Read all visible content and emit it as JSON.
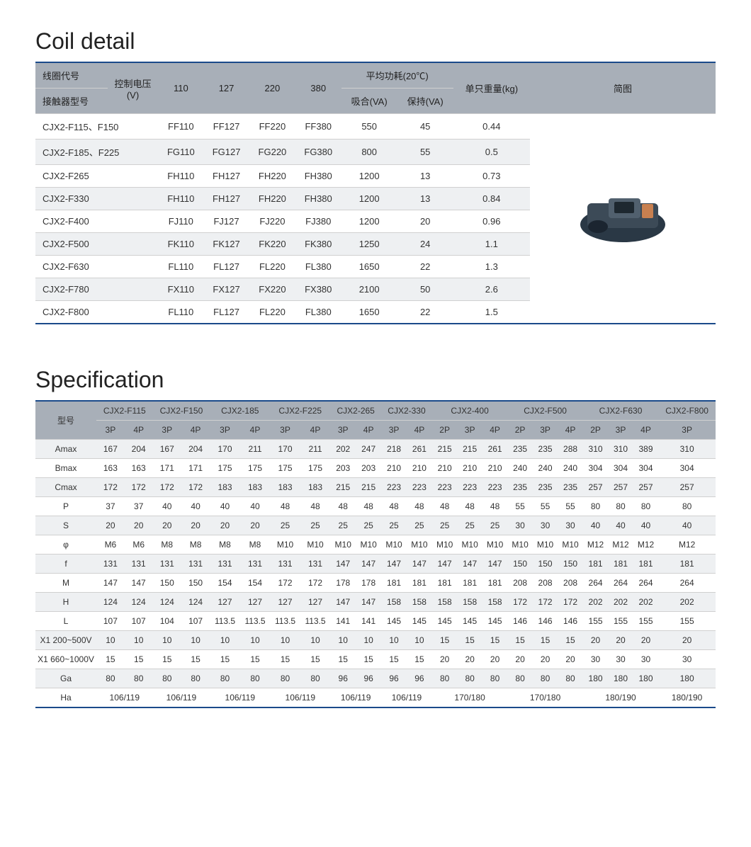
{
  "coil": {
    "title": "Coil detail",
    "header": {
      "coil_code": "线圈代号",
      "contactor_model": "接触器型号",
      "control_voltage": "控制电压 (V)",
      "v110": "110",
      "v127": "127",
      "v220": "220",
      "v380": "380",
      "avg_power": "平均功耗(20℃)",
      "pull_in": "吸合(VA)",
      "hold": "保持(VA)",
      "weight": "单只重量(kg)",
      "diagram": "简图"
    },
    "rows": [
      {
        "model": "CJX2-F115、F150",
        "v110": "FF110",
        "v127": "FF127",
        "v220": "FF220",
        "v380": "FF380",
        "pull": "550",
        "hold": "45",
        "wt": "0.44"
      },
      {
        "model": "CJX2-F185、F225",
        "v110": "FG110",
        "v127": "FG127",
        "v220": "FG220",
        "v380": "FG380",
        "pull": "800",
        "hold": "55",
        "wt": "0.5"
      },
      {
        "model": "CJX2-F265",
        "v110": "FH110",
        "v127": "FH127",
        "v220": "FH220",
        "v380": "FH380",
        "pull": "1200",
        "hold": "13",
        "wt": "0.73"
      },
      {
        "model": "CJX2-F330",
        "v110": "FH110",
        "v127": "FH127",
        "v220": "FH220",
        "v380": "FH380",
        "pull": "1200",
        "hold": "13",
        "wt": "0.84"
      },
      {
        "model": "CJX2-F400",
        "v110": "FJ110",
        "v127": "FJ127",
        "v220": "FJ220",
        "v380": "FJ380",
        "pull": "1200",
        "hold": "20",
        "wt": "0.96"
      },
      {
        "model": "CJX2-F500",
        "v110": "FK110",
        "v127": "FK127",
        "v220": "FK220",
        "v380": "FK380",
        "pull": "1250",
        "hold": "24",
        "wt": "1.1"
      },
      {
        "model": "CJX2-F630",
        "v110": "FL110",
        "v127": "FL127",
        "v220": "FL220",
        "v380": "FL380",
        "pull": "1650",
        "hold": "22",
        "wt": "1.3"
      },
      {
        "model": "CJX2-F780",
        "v110": "FX110",
        "v127": "FX127",
        "v220": "FX220",
        "v380": "FX380",
        "pull": "2100",
        "hold": "50",
        "wt": "2.6"
      },
      {
        "model": "CJX2-F800",
        "v110": "FL110",
        "v127": "FL127",
        "v220": "FL220",
        "v380": "FL380",
        "pull": "1650",
        "hold": "22",
        "wt": "1.5"
      }
    ],
    "colors": {
      "header_bg": "#a8afb8",
      "border": "#1a4a8a",
      "row_alt": "#eef0f2"
    }
  },
  "spec": {
    "title": "Specification",
    "model_label": "型号",
    "models": [
      {
        "name": "CJX2-F115",
        "poles": [
          "3P",
          "4P"
        ]
      },
      {
        "name": "CJX2-F150",
        "poles": [
          "3P",
          "4P"
        ]
      },
      {
        "name": "CJX2-185",
        "poles": [
          "3P",
          "4P"
        ]
      },
      {
        "name": "CJX2-F225",
        "poles": [
          "3P",
          "4P"
        ]
      },
      {
        "name": "CJX2-265",
        "poles": [
          "3P",
          "4P"
        ]
      },
      {
        "name": "CJX2-330",
        "poles": [
          "3P",
          "4P"
        ]
      },
      {
        "name": "CJX2-400",
        "poles": [
          "2P",
          "3P",
          "4P"
        ]
      },
      {
        "name": "CJX2-F500",
        "poles": [
          "2P",
          "3P",
          "4P"
        ]
      },
      {
        "name": "CJX2-F630",
        "poles": [
          "2P",
          "3P",
          "4P"
        ]
      },
      {
        "name": "CJX2-F800",
        "poles": [
          "3P"
        ]
      }
    ],
    "rows": [
      {
        "label": "Amax",
        "vals": [
          "167",
          "204",
          "167",
          "204",
          "170",
          "211",
          "170",
          "211",
          "202",
          "247",
          "218",
          "261",
          "215",
          "215",
          "261",
          "235",
          "235",
          "288",
          "310",
          "310",
          "389",
          "310"
        ]
      },
      {
        "label": "Bmax",
        "vals": [
          "163",
          "163",
          "171",
          "171",
          "175",
          "175",
          "175",
          "175",
          "203",
          "203",
          "210",
          "210",
          "210",
          "210",
          "210",
          "240",
          "240",
          "240",
          "304",
          "304",
          "304",
          "304"
        ]
      },
      {
        "label": "Cmax",
        "vals": [
          "172",
          "172",
          "172",
          "172",
          "183",
          "183",
          "183",
          "183",
          "215",
          "215",
          "223",
          "223",
          "223",
          "223",
          "223",
          "235",
          "235",
          "235",
          "257",
          "257",
          "257",
          "257"
        ]
      },
      {
        "label": "P",
        "vals": [
          "37",
          "37",
          "40",
          "40",
          "40",
          "40",
          "48",
          "48",
          "48",
          "48",
          "48",
          "48",
          "48",
          "48",
          "48",
          "55",
          "55",
          "55",
          "80",
          "80",
          "80",
          "80"
        ]
      },
      {
        "label": "S",
        "vals": [
          "20",
          "20",
          "20",
          "20",
          "20",
          "20",
          "25",
          "25",
          "25",
          "25",
          "25",
          "25",
          "25",
          "25",
          "25",
          "30",
          "30",
          "30",
          "40",
          "40",
          "40",
          "40"
        ]
      },
      {
        "label": "φ",
        "vals": [
          "M6",
          "M6",
          "M8",
          "M8",
          "M8",
          "M8",
          "M10",
          "M10",
          "M10",
          "M10",
          "M10",
          "M10",
          "M10",
          "M10",
          "M10",
          "M10",
          "M10",
          "M10",
          "M12",
          "M12",
          "M12",
          "M12"
        ]
      },
      {
        "label": "f",
        "vals": [
          "131",
          "131",
          "131",
          "131",
          "131",
          "131",
          "131",
          "131",
          "147",
          "147",
          "147",
          "147",
          "147",
          "147",
          "147",
          "150",
          "150",
          "150",
          "181",
          "181",
          "181",
          "181"
        ]
      },
      {
        "label": "M",
        "vals": [
          "147",
          "147",
          "150",
          "150",
          "154",
          "154",
          "172",
          "172",
          "178",
          "178",
          "181",
          "181",
          "181",
          "181",
          "181",
          "208",
          "208",
          "208",
          "264",
          "264",
          "264",
          "264"
        ]
      },
      {
        "label": "H",
        "vals": [
          "124",
          "124",
          "124",
          "124",
          "127",
          "127",
          "127",
          "127",
          "147",
          "147",
          "158",
          "158",
          "158",
          "158",
          "158",
          "172",
          "172",
          "172",
          "202",
          "202",
          "202",
          "202"
        ]
      },
      {
        "label": "L",
        "vals": [
          "107",
          "107",
          "104",
          "107",
          "113.5",
          "113.5",
          "113.5",
          "113.5",
          "141",
          "141",
          "145",
          "145",
          "145",
          "145",
          "145",
          "146",
          "146",
          "146",
          "155",
          "155",
          "155",
          "155"
        ]
      },
      {
        "label": "X1 200~500V",
        "vals": [
          "10",
          "10",
          "10",
          "10",
          "10",
          "10",
          "10",
          "10",
          "10",
          "10",
          "10",
          "10",
          "15",
          "15",
          "15",
          "15",
          "15",
          "15",
          "20",
          "20",
          "20",
          "20"
        ]
      },
      {
        "label": "X1 660~1000V",
        "vals": [
          "15",
          "15",
          "15",
          "15",
          "15",
          "15",
          "15",
          "15",
          "15",
          "15",
          "15",
          "15",
          "20",
          "20",
          "20",
          "20",
          "20",
          "20",
          "30",
          "30",
          "30",
          "30"
        ]
      },
      {
        "label": "Ga",
        "vals": [
          "80",
          "80",
          "80",
          "80",
          "80",
          "80",
          "80",
          "80",
          "96",
          "96",
          "96",
          "96",
          "80",
          "80",
          "80",
          "80",
          "80",
          "80",
          "180",
          "180",
          "180",
          "180"
        ]
      }
    ],
    "ha_row": {
      "label": "Ha",
      "spans": [
        {
          "val": "106/119",
          "span": 2
        },
        {
          "val": "106/119",
          "span": 2
        },
        {
          "val": "106/119",
          "span": 2
        },
        {
          "val": "106/119",
          "span": 2
        },
        {
          "val": "106/119",
          "span": 2
        },
        {
          "val": "106/119",
          "span": 2
        },
        {
          "val": "170/180",
          "span": 3
        },
        {
          "val": "170/180",
          "span": 3
        },
        {
          "val": "180/190",
          "span": 3
        },
        {
          "val": "180/190",
          "span": 1
        }
      ]
    }
  }
}
